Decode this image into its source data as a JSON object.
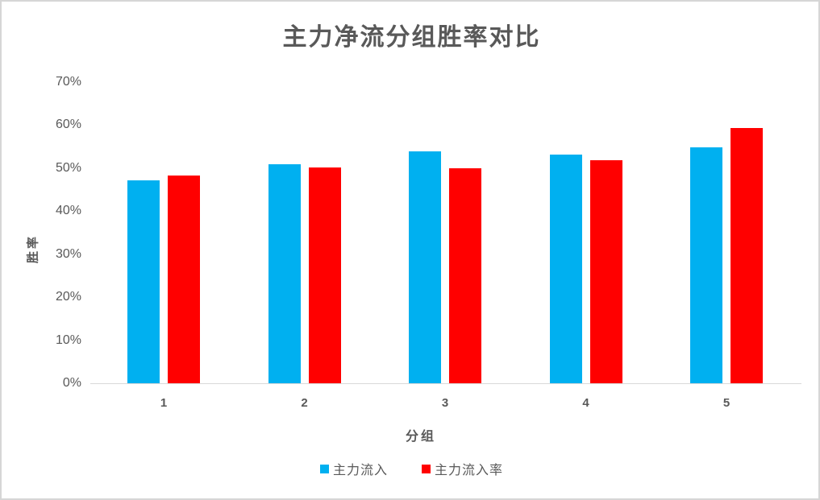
{
  "chart_data": {
    "type": "bar",
    "title": "主力净流分组胜率对比",
    "xlabel": "分组",
    "ylabel": "胜率",
    "categories": [
      "1",
      "2",
      "3",
      "4",
      "5"
    ],
    "series": [
      {
        "name": "主力流入",
        "color": "#00B0F0",
        "values": [
          47.1,
          51.0,
          54.0,
          53.1,
          54.8
        ]
      },
      {
        "name": "主力流入率",
        "color": "#FF0000",
        "values": [
          48.3,
          50.2,
          49.9,
          51.9,
          59.4
        ]
      }
    ],
    "ylim": [
      0,
      70
    ],
    "ytick_step": 10,
    "ytick_labels": [
      "0%",
      "10%",
      "20%",
      "30%",
      "40%",
      "50%",
      "60%",
      "70%"
    ],
    "grid": false,
    "legend_position": "bottom",
    "text_color": "#595959",
    "axis_line_color": "#d9d9d9"
  }
}
